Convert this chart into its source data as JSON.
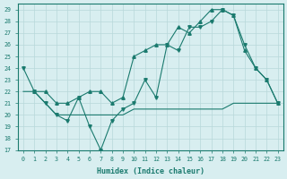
{
  "xlabel": "Humidex (Indice chaleur)",
  "ylabel": "",
  "xlim": [
    -0.5,
    23.5
  ],
  "ylim": [
    17,
    29.5
  ],
  "yticks": [
    17,
    18,
    19,
    20,
    21,
    22,
    23,
    24,
    25,
    26,
    27,
    28,
    29
  ],
  "xticks": [
    0,
    1,
    2,
    3,
    4,
    5,
    6,
    7,
    8,
    9,
    10,
    11,
    12,
    13,
    14,
    15,
    16,
    17,
    18,
    19,
    20,
    21,
    22,
    23
  ],
  "line_color": "#1a7a6e",
  "bg_color": "#d8eef0",
  "grid_color": "#c8dfe0",
  "series1_x": [
    0,
    1,
    2,
    3,
    4,
    5,
    6,
    7,
    8,
    9,
    10,
    11,
    12,
    13,
    14,
    15,
    16,
    17,
    18,
    19,
    20,
    21,
    22,
    23
  ],
  "series1_y": [
    24,
    22,
    21,
    20,
    19.5,
    21.5,
    19,
    17,
    19.5,
    20.5,
    21,
    23,
    21.5,
    26,
    25.5,
    27.5,
    27.5,
    28,
    29,
    28.5,
    26,
    24,
    23,
    21
  ],
  "series2_x": [
    0,
    1,
    2,
    3,
    4,
    5,
    6,
    7,
    8,
    9,
    10,
    11,
    12,
    13,
    14,
    15,
    16,
    17,
    18,
    19,
    20,
    21,
    22,
    23
  ],
  "series2_y": [
    22,
    22,
    21,
    20,
    20,
    20,
    20,
    20,
    20,
    20,
    20.5,
    20.5,
    20.5,
    20.5,
    20.5,
    20.5,
    20.5,
    20.5,
    20.5,
    21,
    21,
    21,
    21,
    21
  ],
  "series3_x": [
    1,
    2,
    3,
    4,
    5,
    6,
    7,
    8,
    9,
    10,
    11,
    12,
    13,
    14,
    15,
    16,
    17,
    18,
    19,
    20,
    21,
    22,
    23
  ],
  "series3_y": [
    22,
    22,
    21,
    21,
    21.5,
    22,
    22,
    21,
    21.5,
    25,
    25.5,
    26,
    26,
    27.5,
    27,
    28,
    29,
    29,
    28.5,
    25.5,
    24,
    23,
    21
  ]
}
